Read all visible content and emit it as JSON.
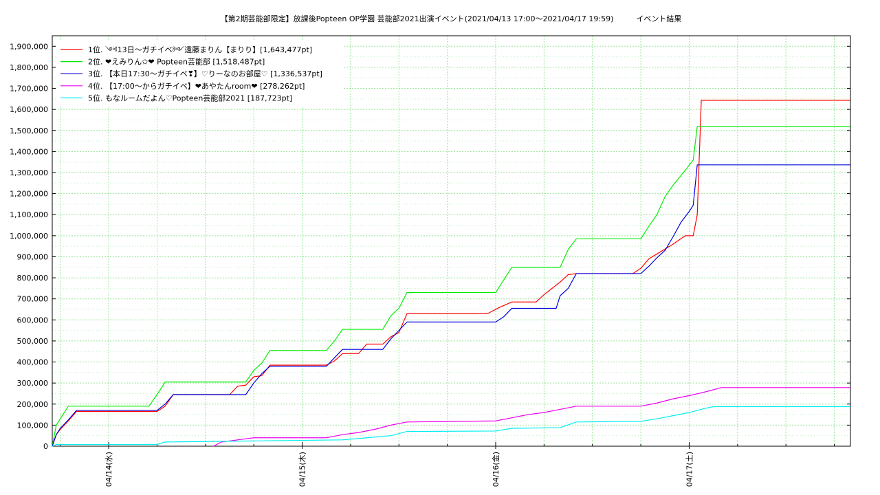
{
  "chart_data": {
    "type": "line",
    "title": "【第2期芸能部限定】放課後Popteen OP学園 芸能部2021出演イベント(2021/04/13 17:00〜2021/04/17 19:59)　　　イベント結果",
    "xlabel": "",
    "ylabel": "",
    "x_range": [
      "2021-04-13 17:00",
      "2021-04-17 20:00"
    ],
    "ylim": [
      0,
      1950000
    ],
    "y_ticks": [
      0,
      100000,
      200000,
      300000,
      400000,
      500000,
      600000,
      700000,
      800000,
      900000,
      1000000,
      1100000,
      1200000,
      1300000,
      1400000,
      1500000,
      1600000,
      1700000,
      1800000,
      1900000
    ],
    "y_tick_labels": [
      "0",
      "100,000",
      "200,000",
      "300,000",
      "400,000",
      "500,000",
      "600,000",
      "700,000",
      "800,000",
      "900,000",
      "1,000,000",
      "1,100,000",
      "1,200,000",
      "1,300,000",
      "1,400,000",
      "1,500,000",
      "1,600,000",
      "1,700,000",
      "1,800,000",
      "1,900,000"
    ],
    "x_ticks": [
      "2021-04-14 00:00",
      "2021-04-15 00:00",
      "2021-04-16 00:00",
      "2021-04-17 00:00"
    ],
    "x_tick_labels": [
      "04/14(水)",
      "04/15(木)",
      "04/16(金)",
      "04/17(土)"
    ],
    "grid": true,
    "legend_position": "top-left",
    "series": [
      {
        "name": "1位. ༺13日〜ガチイベ༻遠藤まりん【まりり】[1,643,477pt]",
        "color": "#ff0000",
        "points": [
          [
            "2021-04-13 17:00",
            0
          ],
          [
            "2021-04-13 17:30",
            55000
          ],
          [
            "2021-04-13 18:00",
            80000
          ],
          [
            "2021-04-13 19:00",
            120000
          ],
          [
            "2021-04-13 20:00",
            165000
          ],
          [
            "2021-04-14 06:00",
            165000
          ],
          [
            "2021-04-14 07:00",
            190000
          ],
          [
            "2021-04-14 08:00",
            245000
          ],
          [
            "2021-04-14 15:00",
            245000
          ],
          [
            "2021-04-14 16:00",
            285000
          ],
          [
            "2021-04-14 17:00",
            290000
          ],
          [
            "2021-04-14 18:00",
            330000
          ],
          [
            "2021-04-14 19:00",
            335000
          ],
          [
            "2021-04-14 20:00",
            385000
          ],
          [
            "2021-04-15 03:00",
            385000
          ],
          [
            "2021-04-15 04:00",
            405000
          ],
          [
            "2021-04-15 05:00",
            440000
          ],
          [
            "2021-04-15 07:00",
            440000
          ],
          [
            "2021-04-15 08:00",
            485000
          ],
          [
            "2021-04-15 10:00",
            485000
          ],
          [
            "2021-04-15 11:00",
            520000
          ],
          [
            "2021-04-15 12:00",
            540000
          ],
          [
            "2021-04-15 13:00",
            630000
          ],
          [
            "2021-04-15 23:00",
            630000
          ],
          [
            "2021-04-16 00:30",
            660000
          ],
          [
            "2021-04-16 02:00",
            685000
          ],
          [
            "2021-04-16 05:00",
            685000
          ],
          [
            "2021-04-16 06:00",
            720000
          ],
          [
            "2021-04-16 07:00",
            750000
          ],
          [
            "2021-04-16 08:00",
            780000
          ],
          [
            "2021-04-16 09:00",
            815000
          ],
          [
            "2021-04-16 10:00",
            820000
          ],
          [
            "2021-04-16 17:00",
            820000
          ],
          [
            "2021-04-16 18:00",
            845000
          ],
          [
            "2021-04-16 19:00",
            890000
          ],
          [
            "2021-04-16 20:30",
            925000
          ],
          [
            "2021-04-16 22:00",
            960000
          ],
          [
            "2021-04-16 23:30",
            1000000
          ],
          [
            "2021-04-17 00:30",
            1000000
          ],
          [
            "2021-04-17 01:00",
            1100000
          ],
          [
            "2021-04-17 01:30",
            1643477
          ],
          [
            "2021-04-17 20:00",
            1643477
          ]
        ]
      },
      {
        "name": "2位. ❤えみりん✩❤ Popteen芸能部 [1,518,487pt]",
        "color": "#00ee00",
        "points": [
          [
            "2021-04-13 17:00",
            0
          ],
          [
            "2021-04-13 17:30",
            100000
          ],
          [
            "2021-04-13 18:00",
            130000
          ],
          [
            "2021-04-13 19:00",
            190000
          ],
          [
            "2021-04-14 05:00",
            190000
          ],
          [
            "2021-04-14 06:00",
            245000
          ],
          [
            "2021-04-14 07:00",
            305000
          ],
          [
            "2021-04-14 17:00",
            305000
          ],
          [
            "2021-04-14 18:00",
            360000
          ],
          [
            "2021-04-14 19:00",
            395000
          ],
          [
            "2021-04-14 20:00",
            455000
          ],
          [
            "2021-04-15 03:00",
            455000
          ],
          [
            "2021-04-15 04:00",
            500000
          ],
          [
            "2021-04-15 05:00",
            555000
          ],
          [
            "2021-04-15 10:00",
            555000
          ],
          [
            "2021-04-15 11:00",
            620000
          ],
          [
            "2021-04-15 12:00",
            655000
          ],
          [
            "2021-04-15 13:00",
            730000
          ],
          [
            "2021-04-16 00:00",
            730000
          ],
          [
            "2021-04-16 01:00",
            790000
          ],
          [
            "2021-04-16 02:00",
            850000
          ],
          [
            "2021-04-16 08:00",
            850000
          ],
          [
            "2021-04-16 09:00",
            935000
          ],
          [
            "2021-04-16 10:00",
            985000
          ],
          [
            "2021-04-16 18:00",
            985000
          ],
          [
            "2021-04-16 19:00",
            1045000
          ],
          [
            "2021-04-16 20:00",
            1100000
          ],
          [
            "2021-04-16 21:00",
            1185000
          ],
          [
            "2021-04-16 22:00",
            1240000
          ],
          [
            "2021-04-16 23:30",
            1310000
          ],
          [
            "2021-04-17 00:30",
            1360000
          ],
          [
            "2021-04-17 01:00",
            1518487
          ],
          [
            "2021-04-17 20:00",
            1518487
          ]
        ]
      },
      {
        "name": "3位. 【本日17:30〜ガチイベ❣】♡りーなのお部屋♡ [1,336,537pt]",
        "color": "#0000dd",
        "points": [
          [
            "2021-04-13 17:00",
            0
          ],
          [
            "2021-04-13 17:30",
            55000
          ],
          [
            "2021-04-13 18:00",
            85000
          ],
          [
            "2021-04-13 19:00",
            125000
          ],
          [
            "2021-04-13 20:00",
            170000
          ],
          [
            "2021-04-14 06:00",
            170000
          ],
          [
            "2021-04-14 07:00",
            200000
          ],
          [
            "2021-04-14 08:00",
            245000
          ],
          [
            "2021-04-14 17:00",
            245000
          ],
          [
            "2021-04-14 18:00",
            300000
          ],
          [
            "2021-04-14 19:00",
            345000
          ],
          [
            "2021-04-14 20:00",
            380000
          ],
          [
            "2021-04-15 03:00",
            380000
          ],
          [
            "2021-04-15 04:00",
            420000
          ],
          [
            "2021-04-15 05:00",
            460000
          ],
          [
            "2021-04-15 10:00",
            460000
          ],
          [
            "2021-04-15 11:00",
            510000
          ],
          [
            "2021-04-15 12:00",
            550000
          ],
          [
            "2021-04-15 13:00",
            590000
          ],
          [
            "2021-04-16 00:00",
            590000
          ],
          [
            "2021-04-16 01:00",
            615000
          ],
          [
            "2021-04-16 02:00",
            655000
          ],
          [
            "2021-04-16 07:30",
            655000
          ],
          [
            "2021-04-16 08:00",
            715000
          ],
          [
            "2021-04-16 09:00",
            750000
          ],
          [
            "2021-04-16 10:00",
            820000
          ],
          [
            "2021-04-16 18:00",
            820000
          ],
          [
            "2021-04-16 19:00",
            855000
          ],
          [
            "2021-04-16 20:00",
            895000
          ],
          [
            "2021-04-16 21:00",
            930000
          ],
          [
            "2021-04-16 22:00",
            995000
          ],
          [
            "2021-04-16 23:00",
            1065000
          ],
          [
            "2021-04-17 00:00",
            1115000
          ],
          [
            "2021-04-17 00:30",
            1145000
          ],
          [
            "2021-04-17 01:00",
            1336537
          ],
          [
            "2021-04-17 20:00",
            1336537
          ]
        ]
      },
      {
        "name": "4位. 【17:00〜からガチイベ】❤あやたんroom❤ [278,262pt]",
        "color": "#ee00ee",
        "points": [
          [
            "2021-04-14 13:00",
            0
          ],
          [
            "2021-04-14 14:00",
            20000
          ],
          [
            "2021-04-14 16:00",
            30000
          ],
          [
            "2021-04-14 18:00",
            40000
          ],
          [
            "2021-04-15 03:00",
            40000
          ],
          [
            "2021-04-15 05:00",
            55000
          ],
          [
            "2021-04-15 07:00",
            65000
          ],
          [
            "2021-04-15 09:00",
            80000
          ],
          [
            "2021-04-15 11:00",
            100000
          ],
          [
            "2021-04-15 13:00",
            115000
          ],
          [
            "2021-04-16 00:00",
            120000
          ],
          [
            "2021-04-16 02:00",
            135000
          ],
          [
            "2021-04-16 04:00",
            150000
          ],
          [
            "2021-04-16 06:00",
            160000
          ],
          [
            "2021-04-16 08:00",
            175000
          ],
          [
            "2021-04-16 10:00",
            190000
          ],
          [
            "2021-04-16 18:00",
            190000
          ],
          [
            "2021-04-16 20:00",
            205000
          ],
          [
            "2021-04-16 22:00",
            225000
          ],
          [
            "2021-04-17 00:00",
            240000
          ],
          [
            "2021-04-17 02:00",
            258000
          ],
          [
            "2021-04-17 04:00",
            278262
          ],
          [
            "2021-04-17 20:00",
            278262
          ]
        ]
      },
      {
        "name": "5位. もなルームだよん♡Popteen芸能部2021 [187,723pt]",
        "color": "#00eeee",
        "points": [
          [
            "2021-04-13 17:00",
            0
          ],
          [
            "2021-04-13 17:30",
            8000
          ],
          [
            "2021-04-14 06:00",
            8000
          ],
          [
            "2021-04-14 07:00",
            20000
          ],
          [
            "2021-04-14 18:00",
            25000
          ],
          [
            "2021-04-15 05:00",
            30000
          ],
          [
            "2021-04-15 08:00",
            40000
          ],
          [
            "2021-04-15 11:00",
            50000
          ],
          [
            "2021-04-15 13:00",
            70000
          ],
          [
            "2021-04-16 00:00",
            72000
          ],
          [
            "2021-04-16 02:00",
            85000
          ],
          [
            "2021-04-16 08:00",
            88000
          ],
          [
            "2021-04-16 10:00",
            115000
          ],
          [
            "2021-04-16 18:00",
            118000
          ],
          [
            "2021-04-16 20:00",
            130000
          ],
          [
            "2021-04-16 22:00",
            145000
          ],
          [
            "2021-04-17 00:00",
            160000
          ],
          [
            "2021-04-17 02:00",
            180000
          ],
          [
            "2021-04-17 03:00",
            187723
          ],
          [
            "2021-04-17 20:00",
            187723
          ]
        ]
      }
    ]
  }
}
